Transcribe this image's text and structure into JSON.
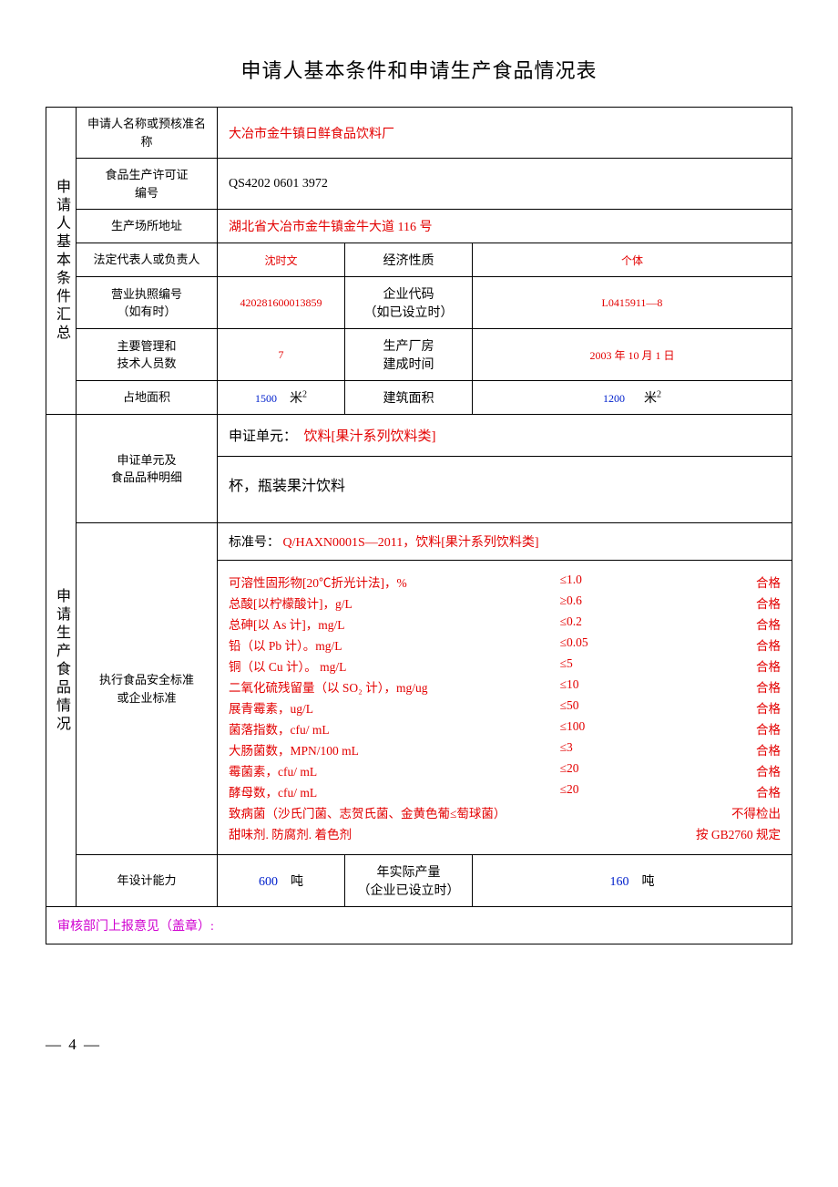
{
  "title": "申请人基本条件和申请生产食品情况表",
  "section1_label": "申请人基本条件汇总",
  "section2_label": "申请生产食品情况",
  "rows": {
    "name_label": "申请人名称或预核准名称",
    "name_value": "大冶市金牛镇日鲜食品饮料厂",
    "license_label": "食品生产许可证\n编号",
    "license_value": "QS4202 0601 3972",
    "addr_label": "生产场所地址",
    "addr_value": "湖北省大冶市金牛镇金牛大道 116 号",
    "legal_label": "法定代表人或负责人",
    "legal_value": "沈时文",
    "econ_label": "经济性质",
    "econ_value": "个体",
    "bizlic_label": "营业执照编号\n（如有时）",
    "bizlic_value": "420281600013859",
    "entcode_label": "企业代码\n（如已设立时）",
    "entcode_value": "L0415911—8",
    "staff_label": "主要管理和\n技术人员数",
    "staff_value": "7",
    "buildtime_label": "生产厂房\n建成时间",
    "buildtime_value": "2003 年 10 月 1 日",
    "land_label": "占地面积",
    "land_value": "1500",
    "land_unit": "米",
    "buildarea_label": "建筑面积",
    "buildarea_value": "1200",
    "buildarea_unit": "米"
  },
  "cert": {
    "row_label": "申证单元及\n食品品种明细",
    "unit_label": "申证单元：",
    "unit_value": "饮料[果汁系列饮料类]",
    "desc": "杯，瓶装果汁饮料"
  },
  "standard": {
    "row_label": "执行食品安全标准\n或企业标准",
    "header_label": "标准号：",
    "header_value": "Q/HAXN0001S—2011，饮料[果汁系列饮料类]",
    "items": [
      {
        "name": "可溶性固形物[20℃折光计法]，%",
        "limit": "≤1.0",
        "pass": "合格"
      },
      {
        "name": "总酸[以柠檬酸计]，g/L",
        "limit": "≥0.6",
        "pass": "合格"
      },
      {
        "name": "总砷[以 As 计]，mg/L",
        "limit": "≤0.2",
        "pass": "合格"
      },
      {
        "name": "铅（以 Pb 计）。mg/L",
        "limit": "≤0.05",
        "pass": "合格"
      },
      {
        "name": "铜（以 Cu 计）。 mg/L",
        "limit": "≤5",
        "pass": "合格"
      },
      {
        "name": "二氧化硫残留量（以 SO₂ 计），mg/ug",
        "limit": "≤10",
        "pass": "合格"
      },
      {
        "name": "展青霉素，ug/L",
        "limit": "≤50",
        "pass": "合格"
      },
      {
        "name": "菌落指数，cfu/ mL",
        "limit": "≤100",
        "pass": "合格"
      },
      {
        "name": "大肠菌数，MPN/100 mL",
        "limit": "≤3",
        "pass": "合格"
      },
      {
        "name": "霉菌素，cfu/ mL",
        "limit": "≤20",
        "pass": "合格"
      },
      {
        "name": "酵母数，cfu/ mL",
        "limit": "≤20",
        "pass": "合格"
      }
    ],
    "extra1_name": "致病菌（沙氏门菌、志贺氏菌、金黄色葡≤萄球菌）",
    "extra1_pass": "不得检出",
    "extra2_name": "甜味剂. 防腐剂. 着色剂",
    "extra2_pass": "按 GB2760 规定"
  },
  "capacity": {
    "design_label": "年设计能力",
    "design_value": "600",
    "design_unit": "吨",
    "actual_label": "年实际产量\n（企业已设立时）",
    "actual_value": "160",
    "actual_unit": "吨"
  },
  "footer": "审核部门上报意见（盖章）:",
  "page_num": "— 4 —",
  "colors": {
    "red": "#e30000",
    "magenta": "#d000d0",
    "border": "#000000"
  }
}
